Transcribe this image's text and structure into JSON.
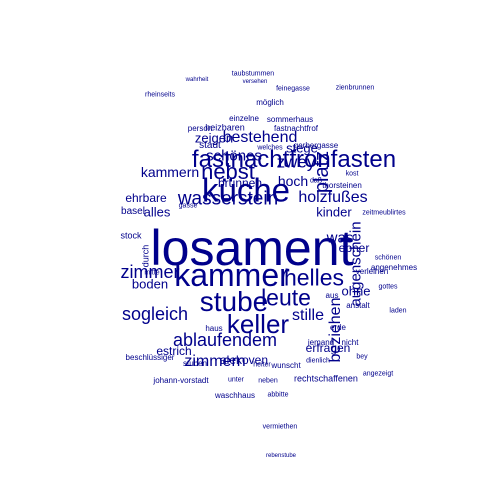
{
  "color": "#00008b",
  "words": [
    "losament",
    "küche",
    "kammer",
    "fastnachtfronfasten",
    "stube",
    "keller",
    "leute",
    "nebst",
    "helles",
    "wasserstein",
    "zimmer",
    "ablaufendem",
    "sogleich",
    "bestehend",
    "platz",
    "zwey",
    "schönes",
    "kammern",
    "beziehen",
    "stille",
    "holzfußes",
    "augenschein",
    "zimmern",
    "hoch",
    "was",
    "ohne",
    "boden",
    "zeigen",
    "stege",
    "alles",
    "kinder",
    "erfragen",
    "ebner",
    "estrich",
    "alekoven",
    "brunnen",
    "ehrbare",
    "taubstummen",
    "wahrheit",
    "versehen",
    "rheinseits",
    "feinegasse",
    "zienbrunnen",
    "möglich",
    "heizbaren",
    "fastnachtfrof",
    "person",
    "einzelne",
    "sommerhaus",
    "johann-vorstadt",
    "rechtschaffenen",
    "nicht",
    "jemand",
    "vermiethen",
    "waschhaus",
    "stuben",
    "gerbergasse",
    "thorsteinen",
    "basel",
    "stock",
    "durch",
    "anstalt",
    "verleihen",
    "angenehmes",
    "schönen",
    "daß",
    "kost",
    "zeitmeublirtes",
    "welches",
    "mitte",
    "beschlüssiger",
    "gasse",
    "aus",
    "erde",
    "wunscht",
    "laden",
    "dienlich",
    "angezeigt",
    "abbitte",
    "stadt",
    "heiter",
    "haus",
    "unter",
    "neben",
    "bey",
    "rebenstube",
    "gottes"
  ]
}
